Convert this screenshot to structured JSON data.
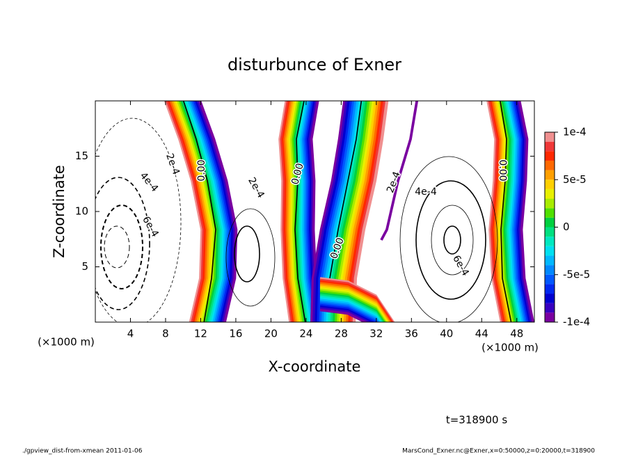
{
  "chart_data": {
    "type": "contour",
    "title": "disturbunce of Exner",
    "x_label": "X-coordinate",
    "y_label": "Z-coordinate",
    "x_unit": "(×1000 m)",
    "xlim": [
      0,
      50
    ],
    "xticks": [
      4,
      8,
      12,
      16,
      20,
      24,
      28,
      32,
      36,
      40,
      44,
      48
    ],
    "ylim": [
      0,
      20
    ],
    "yticks": [
      5,
      10,
      15
    ],
    "colorbar": {
      "levels": [
        -0.0001,
        -9e-05,
        -8e-05,
        -7e-05,
        -6e-05,
        -5e-05,
        -4e-05,
        -3e-05,
        -2e-05,
        -1e-05,
        0,
        1e-05,
        2e-05,
        3e-05,
        4e-05,
        5e-05,
        6e-05,
        7e-05,
        8e-05,
        9e-05,
        0.0001
      ],
      "colors": [
        "#7a00a0",
        "#3800c0",
        "#0000d0",
        "#0028f0",
        "#0058ff",
        "#0088ff",
        "#00b8ff",
        "#00e0f0",
        "#00e8c0",
        "#00e080",
        "#00d040",
        "#50e000",
        "#a8ec00",
        "#e8f000",
        "#ffd000",
        "#ffa000",
        "#ff6800",
        "#ff2800",
        "#f03838",
        "#f09090"
      ],
      "ticks": [
        {
          "value": -0.0001,
          "label": "-1e-4"
        },
        {
          "value": -5e-05,
          "label": "-5e-5"
        },
        0,
        {
          "value": 5e-05,
          "label": "5e-5"
        },
        {
          "value": 0.0001,
          "label": "1e-4"
        }
      ]
    },
    "contour_labels": [
      "2e-4",
      "4e-4",
      "6e-4",
      "0.00",
      "2e-4",
      "0.00",
      "0.00",
      "2e-4",
      "4e-4",
      "6e-4",
      "0.00"
    ],
    "time_label": "t=318900 s",
    "footer_left": "./gpview_dist-from-xmean  2011-01-06",
    "footer_right": "MarsCond_Exner.nc@Exner,x=0:50000,z=0:20000,t=318900"
  }
}
